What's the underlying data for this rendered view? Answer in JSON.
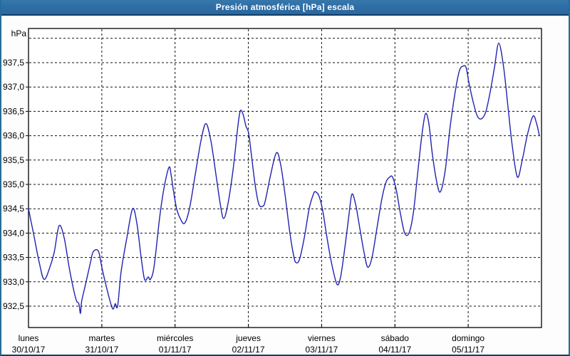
{
  "window": {
    "title": "Presión atmosférica [hPa] escala"
  },
  "colors": {
    "titlebar": "#2d6da6",
    "titlebar_text": "#ffffff",
    "titlebar_underline": "#123c66",
    "window_border_side": "#276c99",
    "window_border_bottom": "#123f6d",
    "background": "#fcfdfc",
    "plot_background": "#ffffff",
    "grid": "#111111",
    "axis": "#000000",
    "line": "#2222b0",
    "label_text": "#000000"
  },
  "chart_data": {
    "type": "line",
    "title": "Presión atmosférica [hPa] escala",
    "ylabel": "hPa",
    "y_unit_label": "hPa",
    "ylim": [
      932.05,
      938.2
    ],
    "xlim_hours": [
      0,
      168
    ],
    "grid": "dashed horizontal + vertical at day boundaries",
    "legend": "none",
    "y_ticks": [
      {
        "value": 938.0,
        "label": ""
      },
      {
        "value": 937.5,
        "label": "937,5"
      },
      {
        "value": 937.0,
        "label": "937,0"
      },
      {
        "value": 936.5,
        "label": "936,5"
      },
      {
        "value": 936.0,
        "label": "936,0"
      },
      {
        "value": 935.5,
        "label": "935,5"
      },
      {
        "value": 935.0,
        "label": "935,0"
      },
      {
        "value": 934.5,
        "label": "934,5"
      },
      {
        "value": 934.0,
        "label": "934,0"
      },
      {
        "value": 933.5,
        "label": "933,5"
      },
      {
        "value": 933.0,
        "label": "933,0"
      },
      {
        "value": 932.5,
        "label": "932,5"
      }
    ],
    "x_ticks": [
      {
        "hour": 0,
        "day": "lunes",
        "date": "30/10/17"
      },
      {
        "hour": 24,
        "day": "martes",
        "date": "31/10/17"
      },
      {
        "hour": 48,
        "day": "miércoles",
        "date": "01/11/17"
      },
      {
        "hour": 72,
        "day": "jueves",
        "date": "02/11/17"
      },
      {
        "hour": 96,
        "day": "viernes",
        "date": "03/11/17"
      },
      {
        "hour": 120,
        "day": "sábado",
        "date": "04/11/17"
      },
      {
        "hour": 144,
        "day": "domingo",
        "date": "05/11/17"
      }
    ],
    "series": [
      {
        "name": "presion_atmosferica_hpa",
        "color": "#2222b0",
        "points": [
          [
            0.0,
            934.5
          ],
          [
            1.6,
            934.0
          ],
          [
            3.5,
            933.4
          ],
          [
            5.1,
            933.05
          ],
          [
            7.0,
            933.3
          ],
          [
            8.4,
            933.6
          ],
          [
            10.0,
            934.15
          ],
          [
            11.7,
            933.9
          ],
          [
            13.3,
            933.3
          ],
          [
            14.9,
            932.8
          ],
          [
            15.8,
            932.6
          ],
          [
            16.5,
            932.55
          ],
          [
            17.0,
            932.35
          ],
          [
            17.4,
            932.6
          ],
          [
            18.7,
            932.95
          ],
          [
            20.3,
            933.4
          ],
          [
            21.2,
            933.62
          ],
          [
            22.9,
            933.63
          ],
          [
            24.0,
            933.3
          ],
          [
            25.7,
            932.85
          ],
          [
            27.5,
            932.45
          ],
          [
            28.4,
            932.55
          ],
          [
            29.2,
            932.5
          ],
          [
            30.3,
            933.2
          ],
          [
            32.2,
            933.9
          ],
          [
            34.1,
            934.5
          ],
          [
            35.5,
            934.2
          ],
          [
            36.9,
            933.5
          ],
          [
            38.0,
            933.05
          ],
          [
            39.2,
            933.1
          ],
          [
            39.9,
            933.05
          ],
          [
            41.1,
            933.3
          ],
          [
            42.9,
            934.3
          ],
          [
            44.3,
            934.9
          ],
          [
            46.0,
            935.35
          ],
          [
            46.7,
            935.2
          ],
          [
            47.4,
            934.9
          ],
          [
            48.5,
            934.5
          ],
          [
            49.7,
            934.3
          ],
          [
            51.1,
            934.2
          ],
          [
            52.7,
            934.5
          ],
          [
            54.6,
            935.2
          ],
          [
            56.5,
            935.9
          ],
          [
            58.1,
            936.25
          ],
          [
            59.7,
            935.9
          ],
          [
            61.4,
            935.2
          ],
          [
            62.8,
            934.6
          ],
          [
            63.9,
            934.3
          ],
          [
            65.3,
            934.6
          ],
          [
            67.0,
            935.3
          ],
          [
            68.4,
            936.1
          ],
          [
            69.3,
            936.5
          ],
          [
            70.2,
            936.45
          ],
          [
            71.2,
            936.2
          ],
          [
            72.1,
            936.05
          ],
          [
            73.0,
            935.6
          ],
          [
            74.2,
            935.0
          ],
          [
            75.4,
            934.6
          ],
          [
            76.6,
            934.55
          ],
          [
            77.5,
            934.65
          ],
          [
            79.3,
            935.2
          ],
          [
            81.2,
            935.65
          ],
          [
            82.6,
            935.4
          ],
          [
            84.0,
            934.8
          ],
          [
            85.6,
            934.0
          ],
          [
            86.8,
            933.55
          ],
          [
            87.5,
            933.4
          ],
          [
            88.7,
            933.45
          ],
          [
            90.3,
            933.9
          ],
          [
            91.9,
            934.5
          ],
          [
            93.3,
            934.8
          ],
          [
            94.0,
            934.85
          ],
          [
            95.2,
            934.75
          ],
          [
            96.4,
            934.45
          ],
          [
            97.5,
            934.0
          ],
          [
            99.2,
            933.4
          ],
          [
            101.0,
            932.95
          ],
          [
            102.2,
            933.1
          ],
          [
            103.6,
            933.7
          ],
          [
            105.0,
            934.4
          ],
          [
            105.9,
            934.8
          ],
          [
            107.1,
            934.6
          ],
          [
            108.5,
            934.1
          ],
          [
            109.9,
            933.6
          ],
          [
            111.1,
            933.3
          ],
          [
            112.5,
            933.5
          ],
          [
            114.1,
            934.1
          ],
          [
            115.7,
            934.7
          ],
          [
            117.1,
            935.05
          ],
          [
            118.3,
            935.15
          ],
          [
            119.2,
            935.15
          ],
          [
            120.4,
            934.9
          ],
          [
            121.8,
            934.4
          ],
          [
            123.2,
            934.0
          ],
          [
            124.6,
            934.0
          ],
          [
            126.0,
            934.4
          ],
          [
            127.4,
            935.2
          ],
          [
            128.8,
            936.0
          ],
          [
            130.0,
            936.45
          ],
          [
            131.1,
            936.25
          ],
          [
            132.3,
            935.6
          ],
          [
            133.7,
            935.05
          ],
          [
            134.9,
            934.85
          ],
          [
            136.5,
            935.3
          ],
          [
            138.1,
            936.2
          ],
          [
            140.0,
            937.0
          ],
          [
            141.2,
            937.35
          ],
          [
            142.3,
            937.43
          ],
          [
            143.3,
            937.4
          ],
          [
            144.2,
            937.1
          ],
          [
            145.6,
            936.7
          ],
          [
            147.0,
            936.4
          ],
          [
            148.4,
            936.35
          ],
          [
            149.8,
            936.5
          ],
          [
            151.2,
            936.9
          ],
          [
            152.6,
            937.4
          ],
          [
            154.0,
            937.9
          ],
          [
            155.6,
            937.4
          ],
          [
            157.0,
            936.6
          ],
          [
            158.4,
            935.8
          ],
          [
            160.1,
            935.15
          ],
          [
            161.7,
            935.5
          ],
          [
            163.3,
            936.0
          ],
          [
            165.2,
            936.4
          ],
          [
            166.4,
            936.25
          ],
          [
            167.3,
            936.0
          ]
        ]
      }
    ]
  }
}
